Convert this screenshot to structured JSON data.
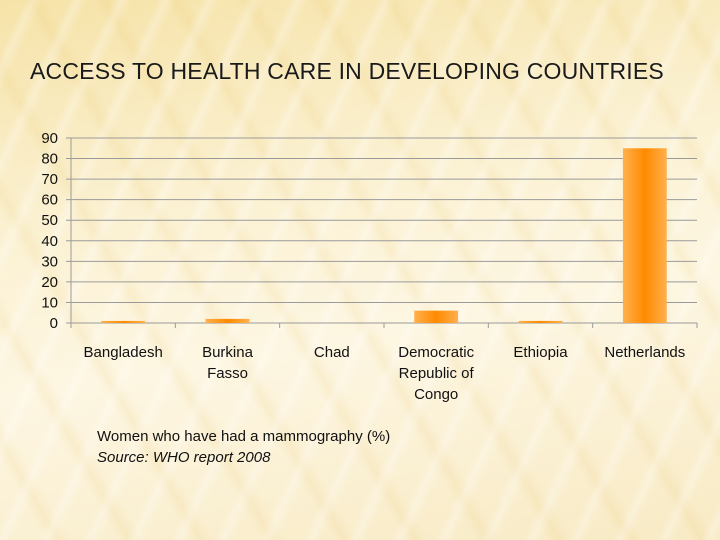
{
  "slide": {
    "title": "ACCESS TO HEALTH CARE IN DEVELOPING COUNTRIES",
    "caption": "Women who have had a mammography (%)",
    "source": "Source: WHO report 2008"
  },
  "colors": {
    "bar": "#ff8c00",
    "bar_light": "#ffb04d",
    "grid": "#9a9a9a"
  },
  "chart_data": {
    "type": "bar",
    "categories": [
      [
        "Bangladesh"
      ],
      [
        "Burkina",
        "Fasso"
      ],
      [
        "Chad"
      ],
      [
        "Democratic",
        "Republic of",
        "Congo"
      ],
      [
        "Ethiopia"
      ],
      [
        "Netherlands"
      ]
    ],
    "values": [
      1,
      2,
      0,
      6,
      1,
      85
    ],
    "ylim": [
      0,
      90
    ],
    "yticks": [
      0,
      10,
      20,
      30,
      40,
      50,
      60,
      70,
      80,
      90
    ],
    "grid": true,
    "legend": "none",
    "title": "",
    "xlabel": "",
    "ylabel": ""
  }
}
